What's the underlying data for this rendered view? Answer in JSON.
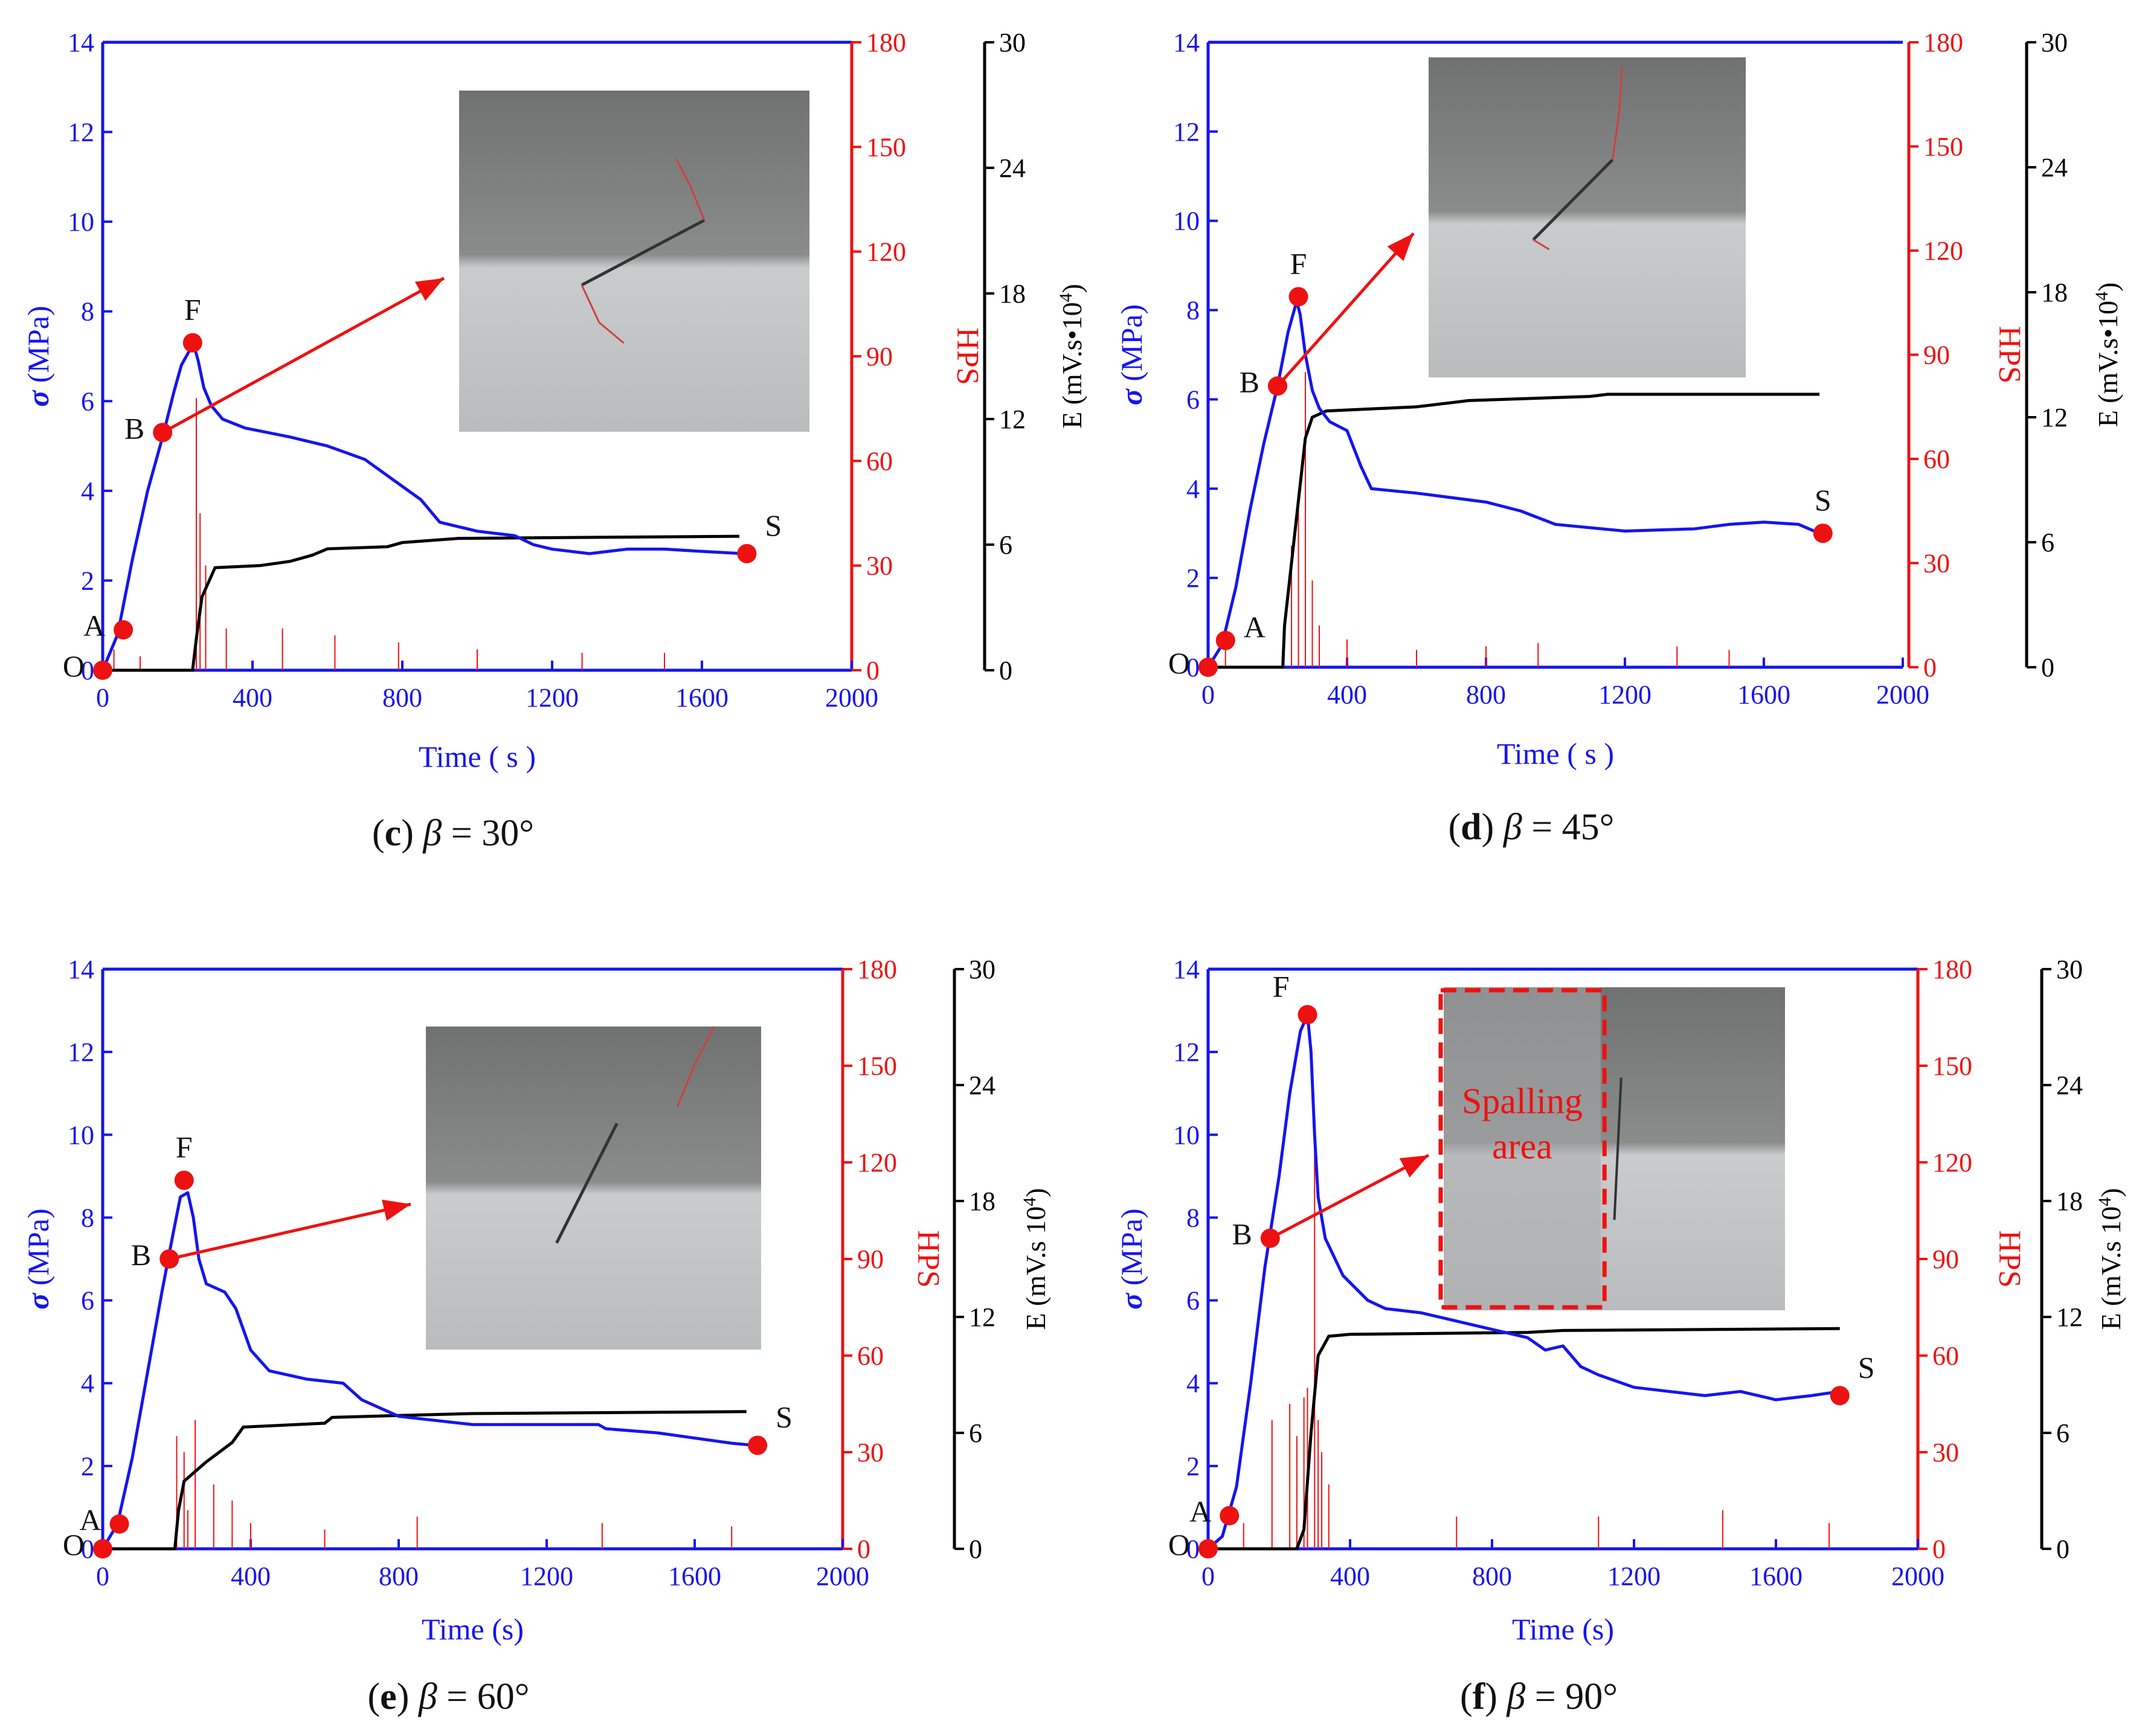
{
  "figure": {
    "axis_labels": {
      "stress": "(MPa)",
      "stress_symbol": "σ",
      "hps": "HPS",
      "energy_c_d": "E (mV.s•10",
      "energy_e_f": "E (mV.s 10",
      "energy_exp": "4",
      "energy_close": ")",
      "time_c_d": "Time ( s )",
      "time_e_f": "Time (s)"
    },
    "ticks": {
      "time": [
        "0",
        "400",
        "800",
        "1200",
        "1600",
        "2000"
      ],
      "stress": [
        "0",
        "2",
        "4",
        "6",
        "8",
        "10",
        "12",
        "14"
      ],
      "hps": [
        "0",
        "30",
        "60",
        "90",
        "120",
        "150",
        "180"
      ],
      "energy": [
        "0",
        "6",
        "12",
        "18",
        "24",
        "30"
      ]
    },
    "colors": {
      "stress": "#1515ee",
      "hps": "#ee1111",
      "energy": "#000000",
      "marker": "#ee1111"
    }
  },
  "chart_data": [
    {
      "panel": "c",
      "type": "line",
      "angle": "30°",
      "caption": {
        "letter": "c",
        "beta": "β",
        "rest": " = 30°"
      },
      "xlim": [
        0,
        2000
      ],
      "ylim_stress": [
        0,
        14
      ],
      "ylim_hps": [
        0,
        180
      ],
      "ylim_energy": [
        0,
        30
      ],
      "xlabel_key": "time_c_d",
      "elabel_key": "energy_c_d",
      "stress_series": [
        [
          0,
          0
        ],
        [
          40,
          0.8
        ],
        [
          80,
          2.5
        ],
        [
          120,
          4.0
        ],
        [
          160,
          5.2
        ],
        [
          190,
          6.2
        ],
        [
          210,
          6.8
        ],
        [
          230,
          7.1
        ],
        [
          245,
          7.2
        ],
        [
          255,
          6.9
        ],
        [
          270,
          6.3
        ],
        [
          290,
          5.9
        ],
        [
          320,
          5.6
        ],
        [
          380,
          5.4
        ],
        [
          500,
          5.2
        ],
        [
          600,
          5.0
        ],
        [
          700,
          4.7
        ],
        [
          750,
          4.4
        ],
        [
          800,
          4.1
        ],
        [
          850,
          3.8
        ],
        [
          880,
          3.5
        ],
        [
          900,
          3.3
        ],
        [
          950,
          3.2
        ],
        [
          1000,
          3.1
        ],
        [
          1100,
          3.0
        ],
        [
          1150,
          2.8
        ],
        [
          1200,
          2.7
        ],
        [
          1300,
          2.6
        ],
        [
          1400,
          2.7
        ],
        [
          1500,
          2.7
        ],
        [
          1600,
          2.65
        ],
        [
          1710,
          2.6
        ]
      ],
      "energy_series": [
        [
          0,
          0
        ],
        [
          240,
          0
        ],
        [
          250,
          1.5
        ],
        [
          265,
          3.5
        ],
        [
          300,
          4.9
        ],
        [
          420,
          5.0
        ],
        [
          500,
          5.2
        ],
        [
          560,
          5.5
        ],
        [
          600,
          5.8
        ],
        [
          760,
          5.9
        ],
        [
          800,
          6.1
        ],
        [
          950,
          6.3
        ],
        [
          1700,
          6.4
        ]
      ],
      "hps_spikes": [
        [
          250,
          78
        ],
        [
          260,
          45
        ],
        [
          275,
          30
        ],
        [
          30,
          6
        ],
        [
          100,
          4
        ],
        [
          330,
          12
        ],
        [
          480,
          12
        ],
        [
          620,
          10
        ],
        [
          790,
          8
        ],
        [
          1000,
          6
        ],
        [
          1280,
          5
        ],
        [
          1500,
          5
        ]
      ],
      "points": [
        {
          "label": "O",
          "t": 0,
          "stress": 0,
          "label_pos": "left"
        },
        {
          "label": "A",
          "t": 55,
          "stress": 0.9,
          "label_pos": "left"
        },
        {
          "label": "B",
          "t": 160,
          "stress": 5.3,
          "label_pos": "left"
        },
        {
          "label": "F",
          "t": 240,
          "stress": 7.3,
          "label_pos": "top"
        },
        {
          "label": "S",
          "t": 1720,
          "stress": 2.6,
          "label_pos": "topright"
        }
      ],
      "inset": {
        "highlight_text": ""
      }
    },
    {
      "panel": "d",
      "type": "line",
      "angle": "45°",
      "caption": {
        "letter": "d",
        "beta": "β",
        "rest": " = 45°"
      },
      "xlim": [
        0,
        2000
      ],
      "ylim_stress": [
        0,
        14
      ],
      "ylim_hps": [
        0,
        180
      ],
      "ylim_energy": [
        0,
        30
      ],
      "xlabel_key": "time_c_d",
      "elabel_key": "energy_c_d",
      "stress_series": [
        [
          0,
          0
        ],
        [
          40,
          0.5
        ],
        [
          80,
          1.8
        ],
        [
          120,
          3.5
        ],
        [
          160,
          5.0
        ],
        [
          200,
          6.3
        ],
        [
          230,
          7.5
        ],
        [
          255,
          8.2
        ],
        [
          265,
          7.9
        ],
        [
          280,
          7.0
        ],
        [
          300,
          6.2
        ],
        [
          320,
          5.8
        ],
        [
          350,
          5.5
        ],
        [
          400,
          5.3
        ],
        [
          440,
          4.5
        ],
        [
          470,
          4.0
        ],
        [
          600,
          3.9
        ],
        [
          800,
          3.7
        ],
        [
          900,
          3.5
        ],
        [
          1000,
          3.2
        ],
        [
          1200,
          3.05
        ],
        [
          1400,
          3.1
        ],
        [
          1500,
          3.2
        ],
        [
          1600,
          3.25
        ],
        [
          1700,
          3.2
        ],
        [
          1760,
          3.0
        ]
      ],
      "energy_series": [
        [
          0,
          0
        ],
        [
          215,
          0
        ],
        [
          220,
          2.0
        ],
        [
          240,
          5.0
        ],
        [
          260,
          8.0
        ],
        [
          280,
          11.0
        ],
        [
          300,
          12.0
        ],
        [
          340,
          12.3
        ],
        [
          600,
          12.5
        ],
        [
          750,
          12.8
        ],
        [
          1100,
          13.0
        ],
        [
          1150,
          13.1
        ],
        [
          1760,
          13.1
        ]
      ],
      "hps_spikes": [
        [
          240,
          35
        ],
        [
          260,
          50
        ],
        [
          280,
          85
        ],
        [
          300,
          25
        ],
        [
          320,
          12
        ],
        [
          50,
          6
        ],
        [
          400,
          8
        ],
        [
          600,
          5
        ],
        [
          800,
          6
        ],
        [
          950,
          7
        ],
        [
          1350,
          6
        ],
        [
          1500,
          5
        ]
      ],
      "points": [
        {
          "label": "O",
          "t": 0,
          "stress": 0,
          "label_pos": "left"
        },
        {
          "label": "A",
          "t": 50,
          "stress": 0.6,
          "label_pos": "right"
        },
        {
          "label": "B",
          "t": 200,
          "stress": 6.3,
          "label_pos": "left"
        },
        {
          "label": "F",
          "t": 260,
          "stress": 8.3,
          "label_pos": "top"
        },
        {
          "label": "S",
          "t": 1770,
          "stress": 3.0,
          "label_pos": "top"
        }
      ],
      "inset": {
        "highlight_text": ""
      }
    },
    {
      "panel": "e",
      "type": "line",
      "angle": "60°",
      "caption": {
        "letter": "e",
        "beta": "β",
        "rest": " = 60°"
      },
      "xlim": [
        0,
        2000
      ],
      "ylim_stress": [
        0,
        14
      ],
      "ylim_hps": [
        0,
        180
      ],
      "ylim_energy": [
        0,
        30
      ],
      "xlabel_key": "time_e_f",
      "elabel_key": "energy_e_f",
      "stress_series": [
        [
          0,
          0
        ],
        [
          40,
          0.6
        ],
        [
          80,
          2.2
        ],
        [
          120,
          4.2
        ],
        [
          160,
          6.2
        ],
        [
          190,
          7.6
        ],
        [
          210,
          8.5
        ],
        [
          230,
          8.6
        ],
        [
          245,
          8.0
        ],
        [
          260,
          7.0
        ],
        [
          280,
          6.4
        ],
        [
          330,
          6.2
        ],
        [
          360,
          5.8
        ],
        [
          400,
          4.8
        ],
        [
          450,
          4.3
        ],
        [
          550,
          4.1
        ],
        [
          650,
          4.0
        ],
        [
          700,
          3.6
        ],
        [
          800,
          3.2
        ],
        [
          900,
          3.1
        ],
        [
          1000,
          3.0
        ],
        [
          1200,
          3.0
        ],
        [
          1340,
          3.0
        ],
        [
          1360,
          2.9
        ],
        [
          1500,
          2.8
        ],
        [
          1700,
          2.55
        ],
        [
          1760,
          2.5
        ]
      ],
      "energy_series": [
        [
          0,
          0
        ],
        [
          195,
          0
        ],
        [
          205,
          2.0
        ],
        [
          220,
          3.5
        ],
        [
          280,
          4.5
        ],
        [
          350,
          5.5
        ],
        [
          380,
          6.3
        ],
        [
          600,
          6.5
        ],
        [
          620,
          6.8
        ],
        [
          800,
          6.9
        ],
        [
          1000,
          7.0
        ],
        [
          1740,
          7.1
        ]
      ],
      "hps_spikes": [
        [
          200,
          35
        ],
        [
          220,
          30
        ],
        [
          250,
          40
        ],
        [
          300,
          20
        ],
        [
          350,
          15
        ],
        [
          230,
          12
        ],
        [
          400,
          8
        ],
        [
          600,
          6
        ],
        [
          850,
          10
        ],
        [
          1350,
          8
        ],
        [
          1700,
          7
        ]
      ],
      "points": [
        {
          "label": "O",
          "t": 0,
          "stress": 0,
          "label_pos": "left"
        },
        {
          "label": "A",
          "t": 45,
          "stress": 0.6,
          "label_pos": "left"
        },
        {
          "label": "B",
          "t": 180,
          "stress": 7.0,
          "label_pos": "left"
        },
        {
          "label": "F",
          "t": 220,
          "stress": 8.9,
          "label_pos": "top"
        },
        {
          "label": "S",
          "t": 1770,
          "stress": 2.5,
          "label_pos": "topright"
        }
      ],
      "inset": {
        "highlight_text": ""
      }
    },
    {
      "panel": "f",
      "type": "line",
      "angle": "90°",
      "caption": {
        "letter": "f",
        "beta": "β",
        "rest": " = 90°"
      },
      "xlim": [
        0,
        2000
      ],
      "ylim_stress": [
        0,
        14
      ],
      "ylim_hps": [
        0,
        180
      ],
      "ylim_energy": [
        0,
        30
      ],
      "xlabel_key": "time_e_f",
      "elabel_key": "energy_e_f",
      "stress_series": [
        [
          0,
          0
        ],
        [
          40,
          0.3
        ],
        [
          80,
          1.5
        ],
        [
          120,
          4.0
        ],
        [
          160,
          6.8
        ],
        [
          200,
          9.0
        ],
        [
          230,
          11.0
        ],
        [
          260,
          12.5
        ],
        [
          280,
          12.9
        ],
        [
          290,
          12.0
        ],
        [
          300,
          10.0
        ],
        [
          310,
          8.5
        ],
        [
          330,
          7.5
        ],
        [
          380,
          6.6
        ],
        [
          450,
          6.0
        ],
        [
          500,
          5.8
        ],
        [
          600,
          5.7
        ],
        [
          700,
          5.5
        ],
        [
          900,
          5.1
        ],
        [
          950,
          4.8
        ],
        [
          1000,
          4.9
        ],
        [
          1050,
          4.4
        ],
        [
          1100,
          4.2
        ],
        [
          1200,
          3.9
        ],
        [
          1300,
          3.8
        ],
        [
          1400,
          3.7
        ],
        [
          1500,
          3.8
        ],
        [
          1600,
          3.6
        ],
        [
          1700,
          3.7
        ],
        [
          1780,
          3.8
        ]
      ],
      "energy_series": [
        [
          0,
          0
        ],
        [
          250,
          0
        ],
        [
          270,
          1.0
        ],
        [
          290,
          6.0
        ],
        [
          310,
          10.0
        ],
        [
          340,
          11.0
        ],
        [
          400,
          11.1
        ],
        [
          900,
          11.2
        ],
        [
          1000,
          11.3
        ],
        [
          1780,
          11.4
        ]
      ],
      "hps_spikes": [
        [
          180,
          40
        ],
        [
          230,
          45
        ],
        [
          250,
          35
        ],
        [
          270,
          47
        ],
        [
          280,
          50
        ],
        [
          300,
          128
        ],
        [
          310,
          40
        ],
        [
          320,
          30
        ],
        [
          340,
          20
        ],
        [
          100,
          8
        ],
        [
          700,
          10
        ],
        [
          1100,
          10
        ],
        [
          1450,
          12
        ],
        [
          1750,
          8
        ]
      ],
      "points": [
        {
          "label": "O",
          "t": 0,
          "stress": 0,
          "label_pos": "left"
        },
        {
          "label": "A",
          "t": 60,
          "stress": 0.8,
          "label_pos": "left"
        },
        {
          "label": "B",
          "t": 175,
          "stress": 7.5,
          "label_pos": "left"
        },
        {
          "label": "F",
          "t": 280,
          "stress": 12.9,
          "label_pos": "topleft"
        },
        {
          "label": "S",
          "t": 1780,
          "stress": 3.7,
          "label_pos": "topright"
        }
      ],
      "inset": {
        "highlight_text_1": "Spalling",
        "highlight_text_2": "area"
      }
    }
  ]
}
